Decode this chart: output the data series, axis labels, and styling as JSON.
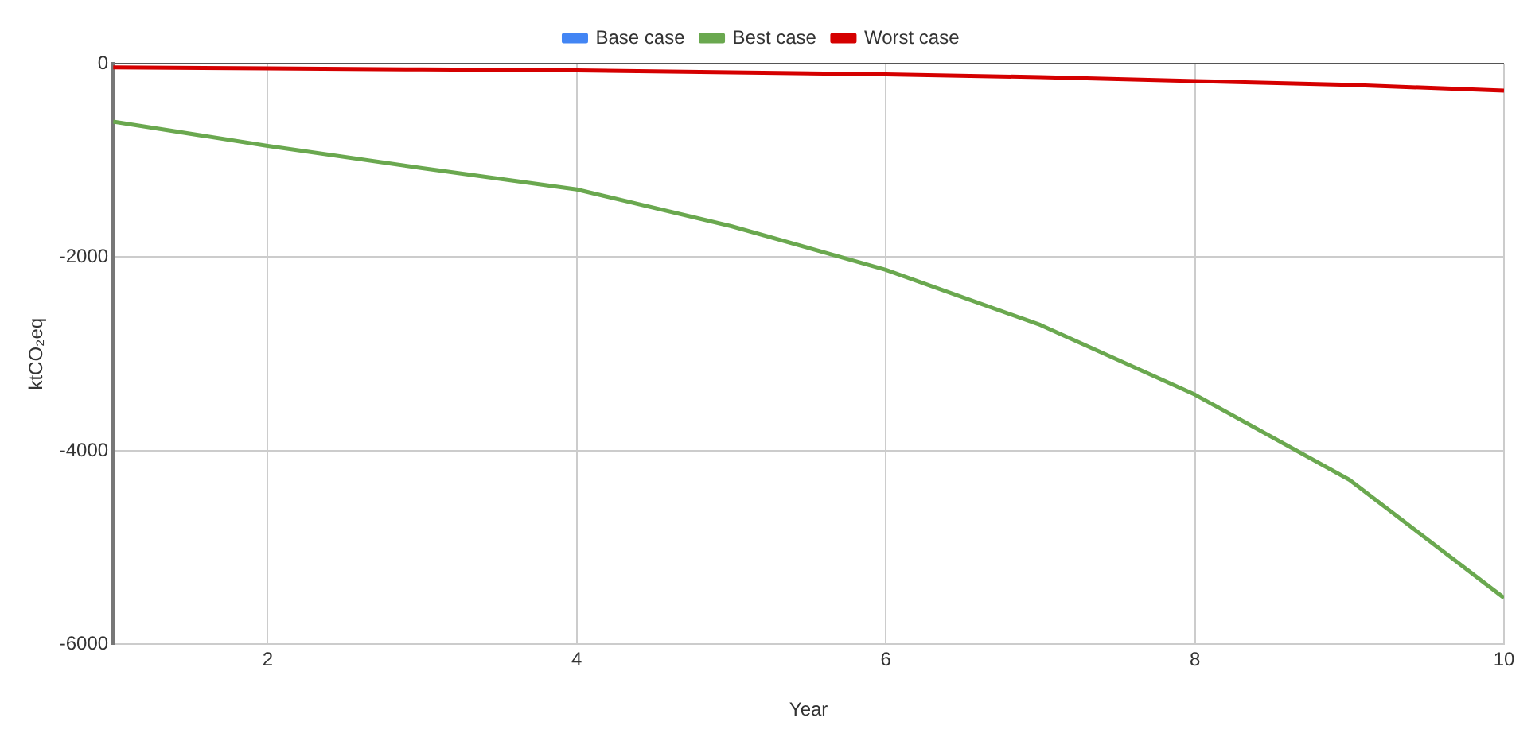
{
  "chart_data": {
    "type": "line",
    "xlabel": "Year",
    "ylabel": "ktCO₂eq",
    "x": [
      1,
      2,
      3,
      4,
      5,
      6,
      7,
      8,
      9,
      10
    ],
    "series": [
      {
        "name": "Base case",
        "color": "#4285f4",
        "values": [
          null,
          null,
          null,
          null,
          null,
          null,
          null,
          null,
          null,
          null
        ]
      },
      {
        "name": "Best case",
        "color": "#6aa84f",
        "values": [
          -600,
          -850,
          -1080,
          -1300,
          -1680,
          -2130,
          -2700,
          -3420,
          -4300,
          -5520
        ]
      },
      {
        "name": "Worst case",
        "color": "#d50000",
        "values": [
          -40,
          -50,
          -60,
          -70,
          -90,
          -110,
          -140,
          -180,
          -220,
          -280
        ]
      }
    ],
    "xlim": [
      1,
      10
    ],
    "xticks": [
      2,
      4,
      6,
      8,
      10
    ],
    "ylim": [
      -6000,
      0
    ],
    "yticks": [
      -6000,
      -4000,
      -2000,
      0
    ],
    "grid": true,
    "legend": "top",
    "marker": "none",
    "line_style": "solid"
  }
}
